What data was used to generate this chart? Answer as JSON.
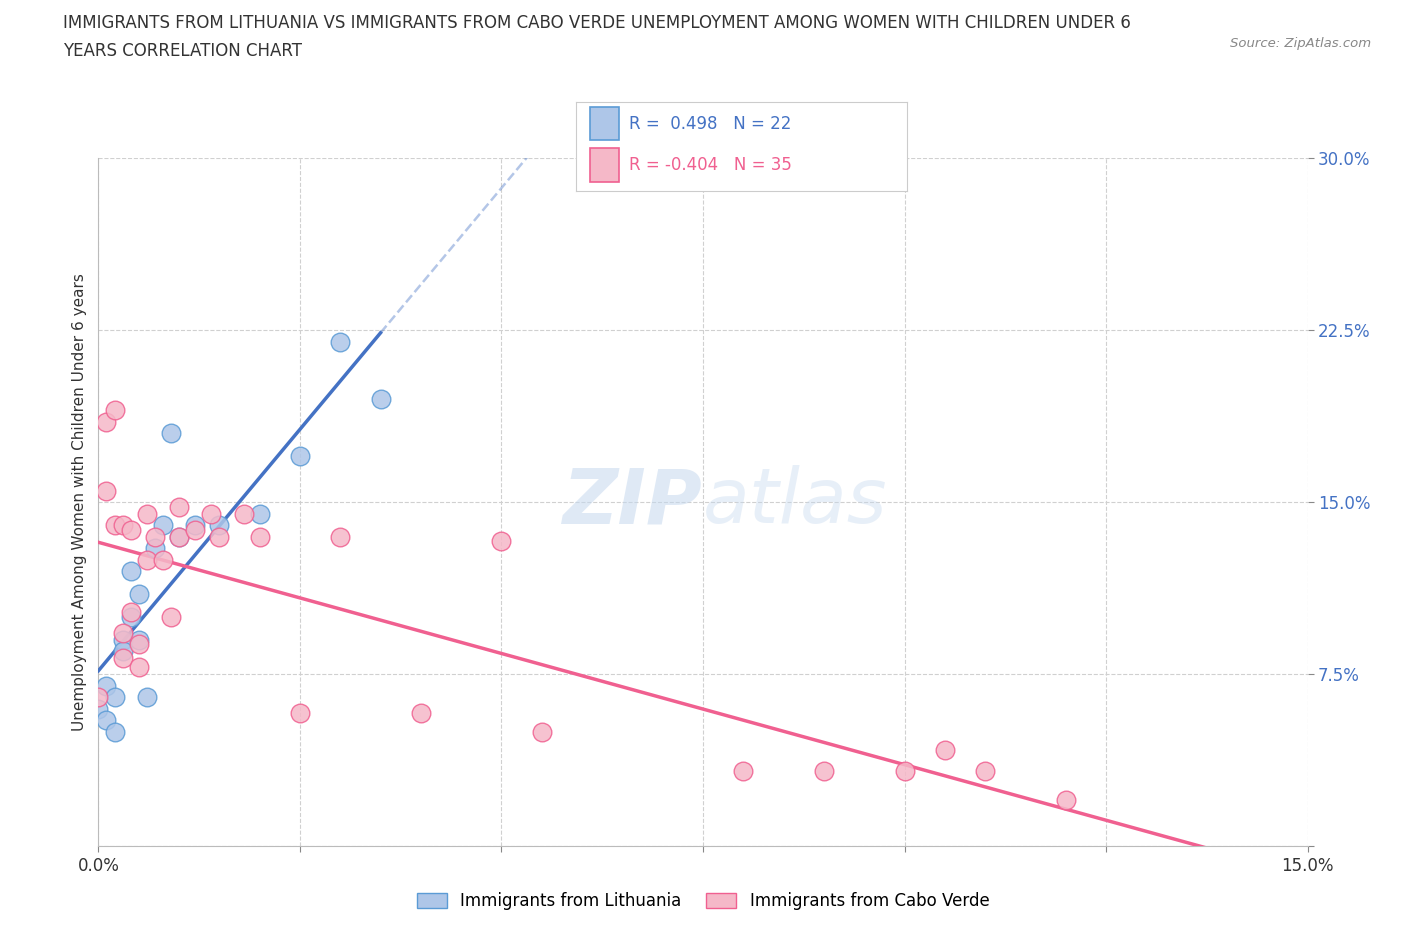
{
  "title_line1": "IMMIGRANTS FROM LITHUANIA VS IMMIGRANTS FROM CABO VERDE UNEMPLOYMENT AMONG WOMEN WITH CHILDREN UNDER 6",
  "title_line2": "YEARS CORRELATION CHART",
  "source": "Source: ZipAtlas.com",
  "ylabel": "Unemployment Among Women with Children Under 6 years",
  "xlim": [
    0.0,
    0.15
  ],
  "ylim": [
    0.0,
    0.3
  ],
  "xticks": [
    0.0,
    0.025,
    0.05,
    0.075,
    0.1,
    0.125,
    0.15
  ],
  "yticks": [
    0.0,
    0.075,
    0.15,
    0.225,
    0.3
  ],
  "lithuania_color": "#aec6e8",
  "cabo_verde_color": "#f5b8c8",
  "lithuania_edge_color": "#5b9bd5",
  "cabo_verde_edge_color": "#f06090",
  "lithuania_line_color": "#4472c4",
  "cabo_verde_line_color": "#f06090",
  "R_lithuania": 0.498,
  "N_lithuania": 22,
  "R_cabo_verde": -0.404,
  "N_cabo_verde": 35,
  "watermark_zip": "ZIP",
  "watermark_atlas": "atlas",
  "legend_label_lithuania": "Immigrants from Lithuania",
  "legend_label_cabo_verde": "Immigrants from Cabo Verde",
  "lithuania_x": [
    0.0,
    0.001,
    0.001,
    0.002,
    0.002,
    0.003,
    0.003,
    0.004,
    0.004,
    0.005,
    0.005,
    0.006,
    0.007,
    0.008,
    0.009,
    0.01,
    0.012,
    0.015,
    0.02,
    0.025,
    0.03,
    0.035
  ],
  "lithuania_y": [
    0.06,
    0.07,
    0.055,
    0.065,
    0.05,
    0.09,
    0.085,
    0.12,
    0.1,
    0.09,
    0.11,
    0.065,
    0.13,
    0.14,
    0.18,
    0.135,
    0.14,
    0.14,
    0.145,
    0.17,
    0.22,
    0.195
  ],
  "cabo_verde_x": [
    0.0,
    0.001,
    0.001,
    0.002,
    0.002,
    0.003,
    0.003,
    0.003,
    0.004,
    0.004,
    0.005,
    0.005,
    0.006,
    0.006,
    0.007,
    0.008,
    0.009,
    0.01,
    0.01,
    0.012,
    0.014,
    0.015,
    0.018,
    0.02,
    0.025,
    0.03,
    0.04,
    0.05,
    0.055,
    0.08,
    0.09,
    0.1,
    0.105,
    0.11,
    0.12
  ],
  "cabo_verde_y": [
    0.065,
    0.155,
    0.185,
    0.14,
    0.19,
    0.082,
    0.093,
    0.14,
    0.102,
    0.138,
    0.078,
    0.088,
    0.125,
    0.145,
    0.135,
    0.125,
    0.1,
    0.135,
    0.148,
    0.138,
    0.145,
    0.135,
    0.145,
    0.135,
    0.058,
    0.135,
    0.058,
    0.133,
    0.05,
    0.033,
    0.033,
    0.033,
    0.042,
    0.033,
    0.02
  ],
  "background_color": "#ffffff",
  "grid_color": "#d0d0d0",
  "tick_color_right": "#4472c4"
}
